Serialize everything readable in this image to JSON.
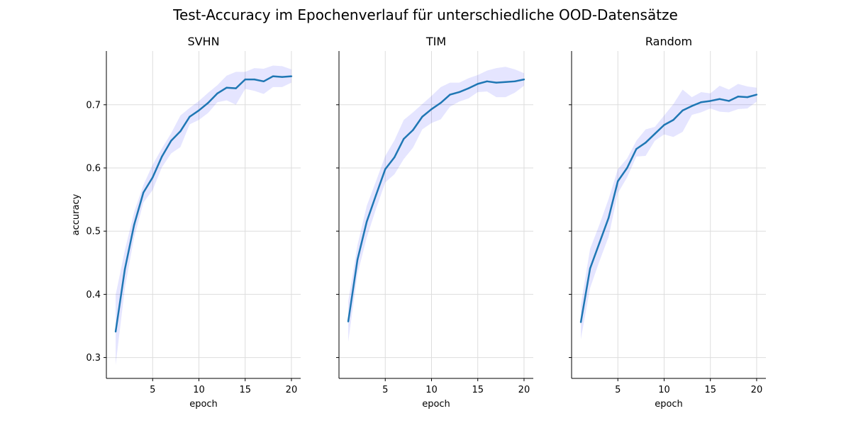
{
  "chart_data": {
    "type": "line",
    "title": "Test-Accuracy im Epochenverlauf für unterschiedliche OOD-Datensätze",
    "ylabel": "accuracy",
    "xlabel": "epoch",
    "xlim": [
      0,
      21
    ],
    "ylim": [
      0.267,
      0.785
    ],
    "xticks": [
      5,
      10,
      15,
      20
    ],
    "yticks": [
      0.3,
      0.4,
      0.5,
      0.6,
      0.7
    ],
    "ytick_labels": [
      "0.3",
      "0.4",
      "0.5",
      "0.6",
      "0.7"
    ],
    "grid": true,
    "sharey": true,
    "colors": {
      "line": "#1f77b4",
      "band": "#0000ff",
      "band_opacity": 0.1
    },
    "x": [
      1,
      2,
      3,
      4,
      5,
      6,
      7,
      8,
      9,
      10,
      11,
      12,
      13,
      14,
      15,
      16,
      17,
      18,
      19,
      20
    ],
    "panels": [
      {
        "title": "SVHN",
        "xlabel": "epoch",
        "ylabel": "accuracy",
        "mean": [
          0.341,
          0.44,
          0.51,
          0.561,
          0.585,
          0.618,
          0.643,
          0.658,
          0.681,
          0.691,
          0.703,
          0.718,
          0.727,
          0.726,
          0.74,
          0.74,
          0.737,
          0.745,
          0.744,
          0.745
        ],
        "lower": [
          0.288,
          0.41,
          0.49,
          0.545,
          0.565,
          0.601,
          0.623,
          0.633,
          0.669,
          0.676,
          0.687,
          0.704,
          0.707,
          0.7,
          0.725,
          0.722,
          0.717,
          0.728,
          0.728,
          0.735
        ],
        "upper": [
          0.399,
          0.47,
          0.53,
          0.573,
          0.605,
          0.631,
          0.655,
          0.683,
          0.695,
          0.706,
          0.719,
          0.731,
          0.746,
          0.752,
          0.752,
          0.758,
          0.757,
          0.762,
          0.761,
          0.756
        ]
      },
      {
        "title": "TIM",
        "xlabel": "epoch",
        "ylabel": "",
        "mean": [
          0.357,
          0.455,
          0.515,
          0.557,
          0.598,
          0.617,
          0.646,
          0.66,
          0.681,
          0.693,
          0.703,
          0.716,
          0.72,
          0.726,
          0.733,
          0.737,
          0.735,
          0.736,
          0.737,
          0.74
        ],
        "lower": [
          0.325,
          0.432,
          0.49,
          0.535,
          0.577,
          0.59,
          0.614,
          0.632,
          0.661,
          0.671,
          0.677,
          0.697,
          0.705,
          0.71,
          0.72,
          0.721,
          0.712,
          0.712,
          0.719,
          0.73
        ],
        "upper": [
          0.389,
          0.478,
          0.54,
          0.579,
          0.619,
          0.644,
          0.676,
          0.688,
          0.701,
          0.714,
          0.728,
          0.735,
          0.735,
          0.742,
          0.747,
          0.754,
          0.758,
          0.76,
          0.756,
          0.75
        ]
      },
      {
        "title": "Random",
        "xlabel": "epoch",
        "ylabel": "",
        "mean": [
          0.356,
          0.441,
          0.481,
          0.521,
          0.579,
          0.6,
          0.63,
          0.64,
          0.654,
          0.668,
          0.676,
          0.691,
          0.698,
          0.704,
          0.706,
          0.709,
          0.706,
          0.713,
          0.712,
          0.716
        ],
        "lower": [
          0.329,
          0.41,
          0.452,
          0.491,
          0.56,
          0.585,
          0.618,
          0.619,
          0.643,
          0.653,
          0.649,
          0.657,
          0.684,
          0.688,
          0.694,
          0.689,
          0.688,
          0.693,
          0.694,
          0.705
        ],
        "upper": [
          0.383,
          0.472,
          0.51,
          0.551,
          0.598,
          0.615,
          0.643,
          0.661,
          0.665,
          0.683,
          0.701,
          0.724,
          0.712,
          0.72,
          0.718,
          0.73,
          0.724,
          0.733,
          0.729,
          0.727
        ]
      }
    ]
  }
}
